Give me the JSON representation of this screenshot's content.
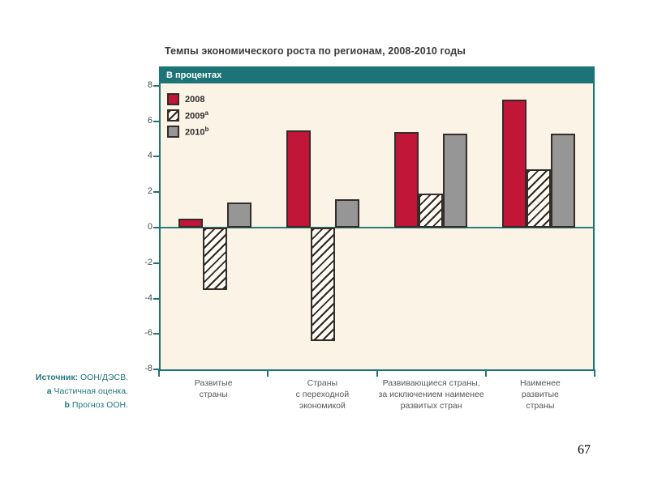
{
  "page": {
    "number": "67"
  },
  "colors": {
    "teal_frame": "#1d7476",
    "plot_background": "#faf3e6",
    "bar_2008_red": "#c21638",
    "bar_2010_gray": "#969696",
    "bar_border": "#332c28",
    "source_text_teal": "#22777b",
    "title_text": "#3b3b3b"
  },
  "chart": {
    "title": "Темпы экономического роста по регионам, 2008-2010 годы",
    "header_label": "В процентах"
  },
  "chart_data": {
    "type": "bar",
    "title": "Темпы экономического роста по регионам, 2008-2010 годы",
    "subtitle": "В процентах",
    "categories": [
      "Развитые\nстраны",
      "Страны\nс переходной\nэкономикой",
      "Развивающиеся страны,\nза исключением наименее\nразвитых стран",
      "Наименее\nразвитые\nстраны"
    ],
    "series": [
      {
        "name": "2008",
        "sup": "",
        "style": "solid",
        "color": "#c21638",
        "values": [
          0.5,
          5.5,
          5.4,
          7.2
        ]
      },
      {
        "name": "2009",
        "sup": "a",
        "style": "hatched",
        "color": "#fdfbf4",
        "values": [
          -3.5,
          -6.4,
          1.9,
          3.3
        ]
      },
      {
        "name": "2010",
        "sup": "b",
        "style": "solid",
        "color": "#969696",
        "values": [
          1.4,
          1.6,
          5.3,
          5.3
        ]
      }
    ],
    "ylim": [
      -8.1,
      8.1
    ],
    "yticks": [
      8,
      6,
      4,
      2,
      0,
      -2,
      -4,
      -6,
      -8
    ],
    "xlabel": "",
    "ylabel": "",
    "grid": "zero-line-only",
    "legend_position": "top-left"
  },
  "source": {
    "lines": [
      {
        "prefix": "Источник:",
        "text": "ООН/ДЭСВ."
      },
      {
        "prefix": "a",
        "text": "Частичная оценка."
      },
      {
        "prefix": "b",
        "text": "Прогноз ООН."
      }
    ]
  }
}
